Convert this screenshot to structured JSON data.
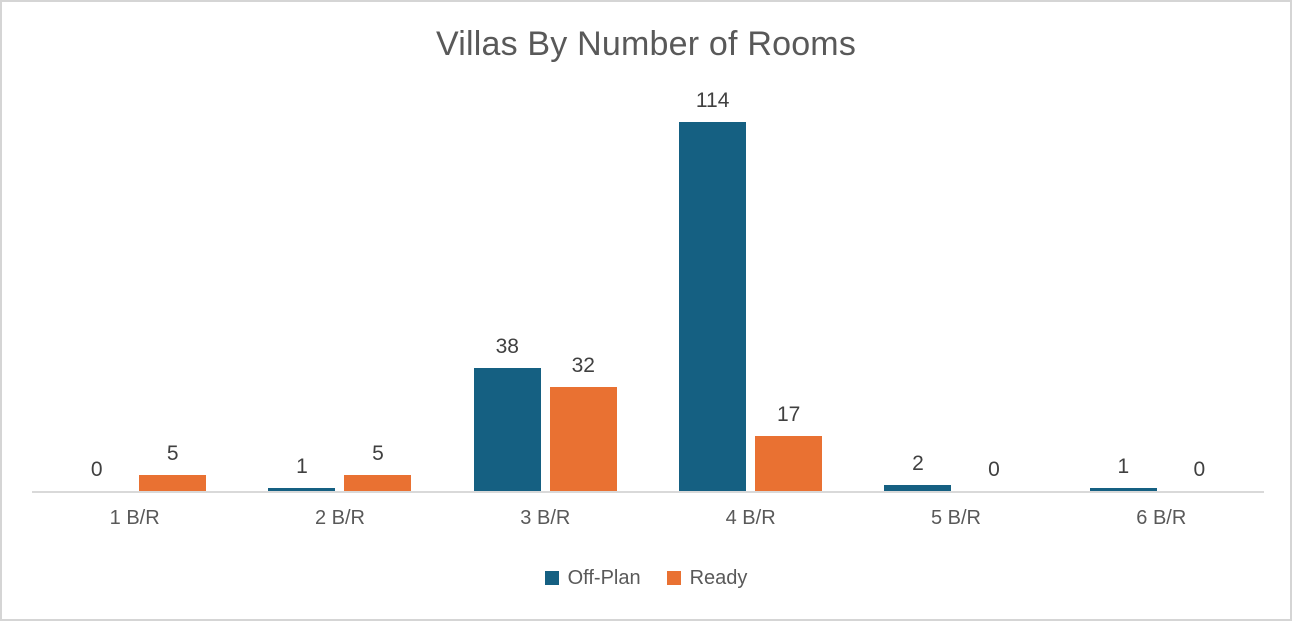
{
  "chart_data": {
    "type": "bar",
    "title": "Villas By Number of Rooms",
    "categories": [
      "1 B/R",
      "2 B/R",
      "3 B/R",
      "4 B/R",
      "5 B/R",
      "6 B/R"
    ],
    "series": [
      {
        "name": "Off-Plan",
        "color": "#156082",
        "values": [
          0,
          1,
          38,
          114,
          2,
          1
        ]
      },
      {
        "name": "Ready",
        "color": "#E97132",
        "values": [
          5,
          5,
          32,
          17,
          0,
          0
        ]
      }
    ],
    "xlabel": "",
    "ylabel": "",
    "ylim": [
      0,
      120
    ],
    "grid": false,
    "legend_position": "bottom",
    "data_labels": true,
    "colors": {
      "title_text": "#595959",
      "data_label_text": "#404040",
      "axis_tick_text": "#595959",
      "axis_line": "#D9D9D9",
      "frame_border": "#D5D5D5",
      "background": "#FFFFFF"
    }
  }
}
